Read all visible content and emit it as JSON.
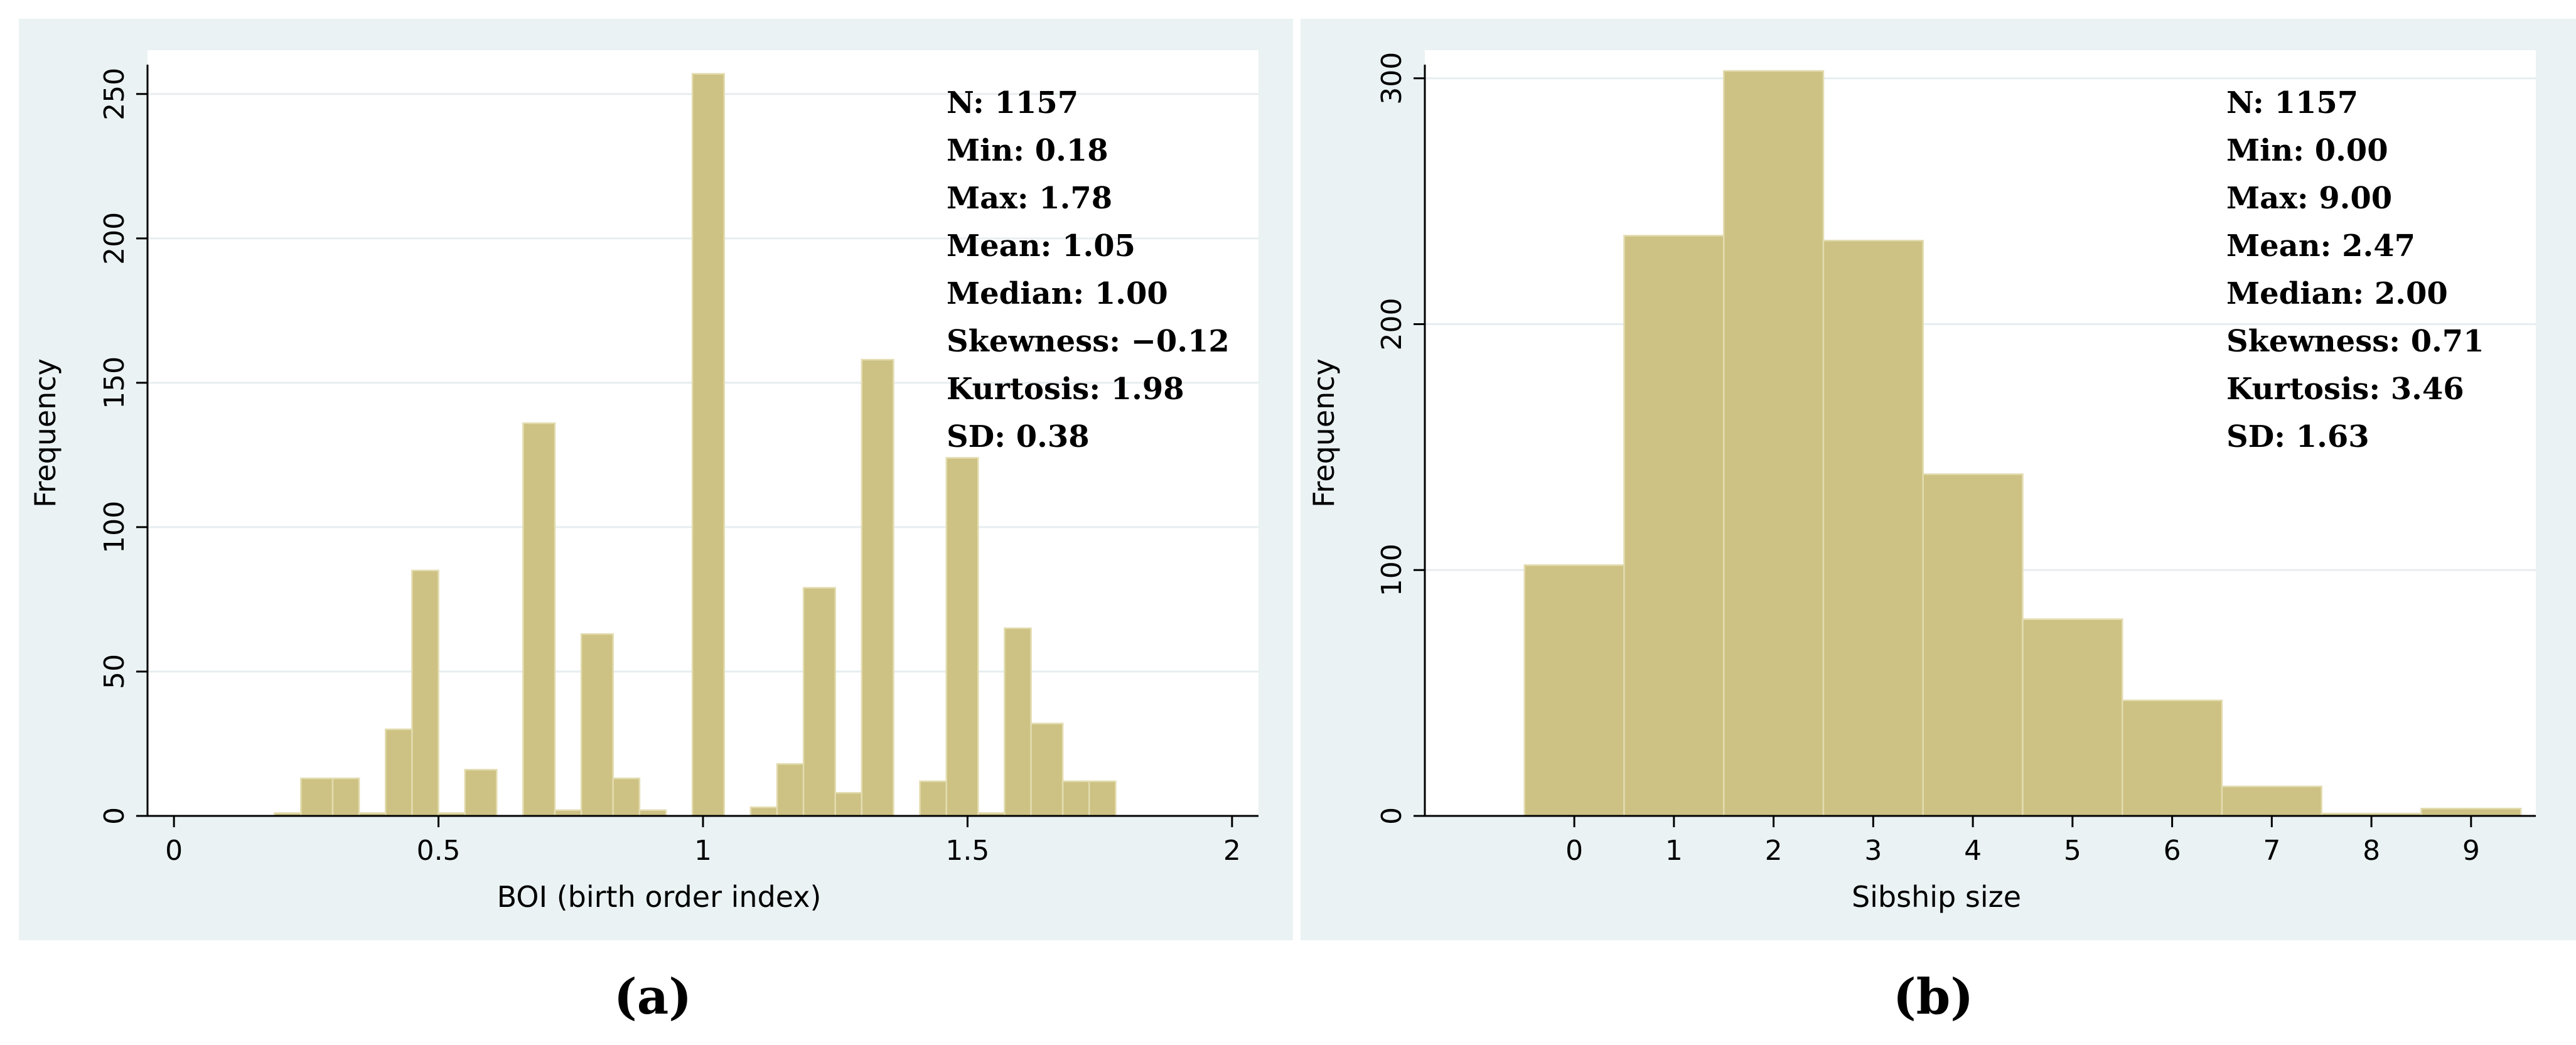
{
  "chart_data": [
    {
      "type": "bar",
      "caption": "(a)",
      "xlabel": "BOI (birth order index)",
      "ylabel": "Frequency",
      "xlim": [
        -0.05,
        2.05
      ],
      "ylim": [
        0,
        258
      ],
      "xticks": [
        "0",
        "0.5",
        "1",
        "1.5",
        "2"
      ],
      "xtick_values": [
        0,
        0.5,
        1,
        1.5,
        2
      ],
      "yticks": [
        "0",
        "50",
        "100",
        "150",
        "200",
        "250"
      ],
      "ytick_values": [
        0,
        50,
        100,
        150,
        200,
        250
      ],
      "grid": true,
      "bins": [
        {
          "x0": 0.19,
          "x1": 0.24,
          "value": 1
        },
        {
          "x0": 0.24,
          "x1": 0.3,
          "value": 13
        },
        {
          "x0": 0.3,
          "x1": 0.35,
          "value": 13
        },
        {
          "x0": 0.35,
          "x1": 0.4,
          "value": 1
        },
        {
          "x0": 0.4,
          "x1": 0.45,
          "value": 30
        },
        {
          "x0": 0.45,
          "x1": 0.5,
          "value": 85
        },
        {
          "x0": 0.5,
          "x1": 0.55,
          "value": 1
        },
        {
          "x0": 0.55,
          "x1": 0.61,
          "value": 16
        },
        {
          "x0": 0.66,
          "x1": 0.72,
          "value": 136
        },
        {
          "x0": 0.72,
          "x1": 0.77,
          "value": 2
        },
        {
          "x0": 0.77,
          "x1": 0.83,
          "value": 63
        },
        {
          "x0": 0.83,
          "x1": 0.88,
          "value": 13
        },
        {
          "x0": 0.88,
          "x1": 0.93,
          "value": 2
        },
        {
          "x0": 0.98,
          "x1": 1.04,
          "value": 257
        },
        {
          "x0": 1.09,
          "x1": 1.14,
          "value": 3
        },
        {
          "x0": 1.14,
          "x1": 1.19,
          "value": 18
        },
        {
          "x0": 1.19,
          "x1": 1.25,
          "value": 79
        },
        {
          "x0": 1.25,
          "x1": 1.3,
          "value": 8
        },
        {
          "x0": 1.3,
          "x1": 1.36,
          "value": 158
        },
        {
          "x0": 1.41,
          "x1": 1.46,
          "value": 12
        },
        {
          "x0": 1.46,
          "x1": 1.52,
          "value": 124
        },
        {
          "x0": 1.52,
          "x1": 1.57,
          "value": 1
        },
        {
          "x0": 1.57,
          "x1": 1.62,
          "value": 65
        },
        {
          "x0": 1.62,
          "x1": 1.68,
          "value": 32
        },
        {
          "x0": 1.68,
          "x1": 1.73,
          "value": 12
        },
        {
          "x0": 1.73,
          "x1": 1.78,
          "value": 12
        }
      ],
      "stats": [
        "N: 1157",
        "Min: 0.18",
        "Max: 1.78",
        "Mean: 1.05",
        "Median: 1.00",
        "Skewness: −0.12",
        "Kurtosis: 1.98",
        "SD: 0.38"
      ]
    },
    {
      "type": "bar",
      "caption": "(b)",
      "xlabel": "Sibship size",
      "ylabel": "Frequency",
      "xlim": [
        -1.5,
        9.65
      ],
      "ylim": [
        0,
        303
      ],
      "xticks": [
        "0",
        "1",
        "2",
        "3",
        "4",
        "5",
        "6",
        "7",
        "8",
        "9"
      ],
      "xtick_values": [
        0,
        1,
        2,
        3,
        4,
        5,
        6,
        7,
        8,
        9
      ],
      "yticks": [
        "0",
        "100",
        "200",
        "300"
      ],
      "ytick_values": [
        0,
        100,
        200,
        300
      ],
      "grid": true,
      "bins": [
        {
          "x0": -0.5,
          "x1": 0.5,
          "value": 102
        },
        {
          "x0": 0.5,
          "x1": 1.5,
          "value": 236
        },
        {
          "x0": 1.5,
          "x1": 2.5,
          "value": 303
        },
        {
          "x0": 2.5,
          "x1": 3.5,
          "value": 234
        },
        {
          "x0": 3.5,
          "x1": 4.5,
          "value": 139
        },
        {
          "x0": 4.5,
          "x1": 5.5,
          "value": 80
        },
        {
          "x0": 5.5,
          "x1": 6.5,
          "value": 47
        },
        {
          "x0": 6.5,
          "x1": 7.5,
          "value": 12
        },
        {
          "x0": 7.5,
          "x1": 8.5,
          "value": 1
        },
        {
          "x0": 8.5,
          "x1": 9.5,
          "value": 3
        }
      ],
      "stats": [
        "N: 1157",
        "Min: 0.00",
        "Max: 9.00",
        "Mean: 2.47",
        "Median: 2.00",
        "Skewness: 0.71",
        "Kurtosis: 3.46",
        "SD: 1.63"
      ]
    }
  ]
}
